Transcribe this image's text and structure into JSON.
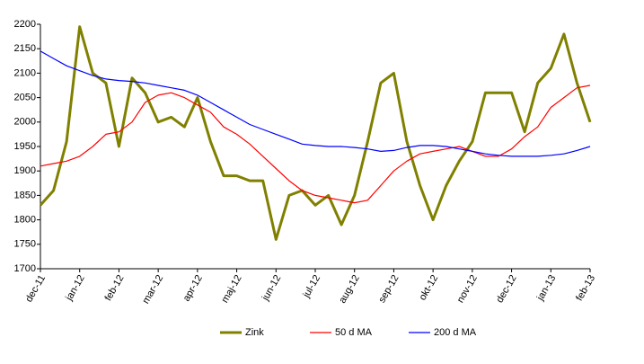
{
  "chart_data": {
    "type": "line",
    "categories": [
      "dec-11",
      null,
      null,
      "jan-12",
      null,
      null,
      "feb-12",
      null,
      null,
      "mar-12",
      null,
      null,
      "apr-12",
      null,
      null,
      "maj-12",
      null,
      null,
      "jun-12",
      null,
      null,
      "jul-12",
      null,
      null,
      "aug-12",
      null,
      null,
      "sep-12",
      null,
      null,
      "okt-12",
      null,
      null,
      "nov-12",
      null,
      null,
      "dec-12",
      null,
      null,
      "jan-13",
      null,
      null,
      "feb-13"
    ],
    "series": [
      {
        "name": "Zink",
        "color": "#808000",
        "values": [
          1830,
          1860,
          1960,
          2195,
          2100,
          2080,
          1950,
          2090,
          2060,
          2000,
          2010,
          1990,
          2050,
          1960,
          1890,
          1890,
          1880,
          1880,
          1760,
          1850,
          1860,
          1830,
          1850,
          1790,
          1850,
          1960,
          2080,
          2100,
          1960,
          1870,
          1800,
          1870,
          1920,
          1960,
          2060,
          2060,
          2060,
          1980,
          2080,
          2110,
          2180,
          2080,
          2000
        ]
      },
      {
        "name": "50 d MA",
        "color": "#ff0000",
        "values": [
          1910,
          1915,
          1920,
          1930,
          1950,
          1975,
          1980,
          2000,
          2040,
          2055,
          2060,
          2050,
          2035,
          2020,
          1990,
          1975,
          1955,
          1930,
          1905,
          1880,
          1860,
          1850,
          1845,
          1840,
          1835,
          1840,
          1870,
          1900,
          1920,
          1935,
          1940,
          1945,
          1950,
          1940,
          1930,
          1930,
          1945,
          1970,
          1990,
          2030,
          2050,
          2070,
          2075
        ]
      },
      {
        "name": "200 d MA",
        "color": "#0000ff",
        "values": [
          2145,
          2130,
          2115,
          2105,
          2095,
          2088,
          2085,
          2083,
          2080,
          2075,
          2070,
          2065,
          2055,
          2040,
          2025,
          2010,
          1995,
          1985,
          1975,
          1965,
          1955,
          1952,
          1950,
          1950,
          1948,
          1945,
          1940,
          1942,
          1948,
          1952,
          1952,
          1950,
          1945,
          1940,
          1935,
          1932,
          1930,
          1930,
          1930,
          1932,
          1935,
          1942,
          1950
        ]
      }
    ],
    "ylim": [
      1700,
      2200
    ],
    "yticks": [
      1700,
      1750,
      1800,
      1850,
      1900,
      1950,
      2000,
      2050,
      2100,
      2150,
      2200
    ],
    "grid": false,
    "legend": "bottom"
  }
}
